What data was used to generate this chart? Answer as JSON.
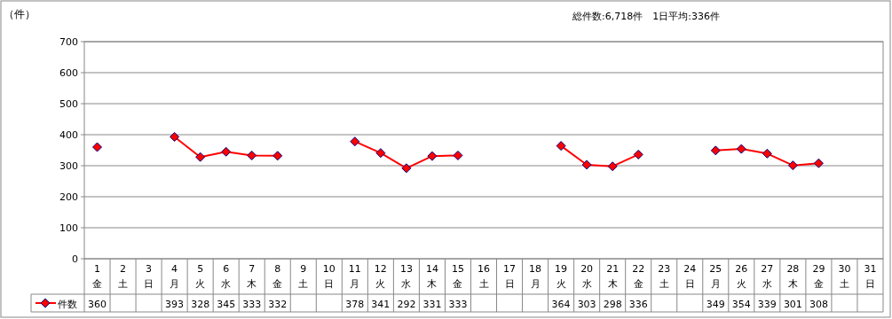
{
  "chart_data": {
    "type": "line",
    "ylabel": "（件）",
    "annotations": [
      "総件数:6,718件　1日平均:336件"
    ],
    "categories": [
      "1\n金",
      "2\n土",
      "3\n日",
      "4\n月",
      "5\n火",
      "6\n水",
      "7\n木",
      "8\n金",
      "9\n土",
      "10\n日",
      "11\n月",
      "12\n火",
      "13\n水",
      "14\n木",
      "15\n金",
      "16\n土",
      "17\n日",
      "18\n月",
      "19\n火",
      "20\n水",
      "21\n木",
      "22\n金",
      "23\n土",
      "24\n日",
      "25\n月",
      "26\n火",
      "27\n水",
      "28\n木",
      "29\n金",
      "30\n土",
      "31\n日"
    ],
    "series": [
      {
        "name": "件数",
        "color": "#ff0000",
        "values": [
          360,
          null,
          null,
          393,
          328,
          345,
          333,
          332,
          null,
          null,
          378,
          341,
          292,
          331,
          333,
          null,
          null,
          null,
          364,
          303,
          298,
          336,
          null,
          null,
          349,
          354,
          339,
          301,
          308,
          null,
          null
        ]
      }
    ],
    "ylim": [
      0,
      700
    ],
    "yticks": [
      0,
      100,
      200,
      300,
      400,
      500,
      600,
      700
    ],
    "grid": "y",
    "marker": "diamond",
    "line_style": "solid",
    "data_labels": true,
    "legend": "bottom"
  }
}
